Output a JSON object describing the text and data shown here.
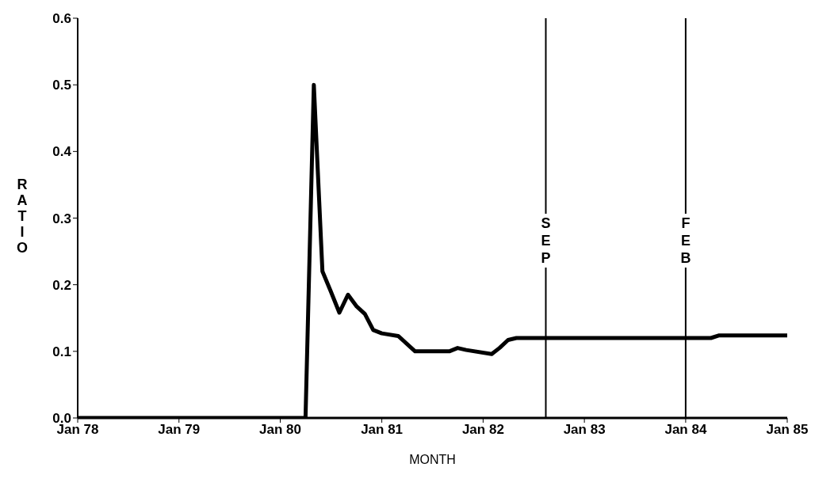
{
  "chart_data": {
    "type": "line",
    "xlabel": "MONTH",
    "ylabel": "RATIO",
    "x": [
      "1978-01",
      "1980-04",
      "1980-05",
      "1980-06",
      "1980-07",
      "1980-08",
      "1980-09",
      "1980-10",
      "1980-11",
      "1980-12",
      "1981-01",
      "1981-03",
      "1981-05",
      "1981-09",
      "1981-10",
      "1981-11",
      "1982-02",
      "1982-03",
      "1982-04",
      "1982-05",
      "1984-04",
      "1984-05",
      "1985-01"
    ],
    "series": [
      {
        "color": "#000000",
        "values": [
          0,
          0,
          0.5,
          0.22,
          0.19,
          0.158,
          0.185,
          0.168,
          0.156,
          0.132,
          0.127,
          0.123,
          0.1,
          0.1,
          0.105,
          0.102,
          0.096,
          0.105,
          0.117,
          0.12,
          0.12,
          0.124,
          0.124
        ]
      }
    ],
    "xlim": [
      "1978-01",
      "1985-01"
    ],
    "xticks": [
      {
        "value": "1978-01",
        "label": "Jan 78"
      },
      {
        "value": "1979-01",
        "label": "Jan 79"
      },
      {
        "value": "1980-01",
        "label": "Jan 80"
      },
      {
        "value": "1981-01",
        "label": "Jan 81"
      },
      {
        "value": "1982-01",
        "label": "Jan 82"
      },
      {
        "value": "1983-01",
        "label": "Jan 83"
      },
      {
        "value": "1984-01",
        "label": "Jan 84"
      },
      {
        "value": "1985-01",
        "label": "Jan 85"
      }
    ],
    "ylim": [
      0,
      0.6
    ],
    "yticks": [
      {
        "value": 0,
        "label": "0.0"
      },
      {
        "value": 0.1,
        "label": "0.1"
      },
      {
        "value": 0.2,
        "label": "0.2"
      },
      {
        "value": 0.3,
        "label": "0.3"
      },
      {
        "value": 0.4,
        "label": "0.4"
      },
      {
        "value": 0.5,
        "label": "0.5"
      },
      {
        "value": 0.6,
        "label": "0.6"
      }
    ],
    "ref_lines": [
      {
        "axis": "x",
        "value": "1982-08-15",
        "label": "SEP",
        "color": "#000000"
      },
      {
        "axis": "x",
        "value": "1984-01",
        "label": "FEB",
        "color": "#000000"
      }
    ],
    "grid": false,
    "legend": false,
    "marker": "none",
    "line_style": "solid"
  }
}
